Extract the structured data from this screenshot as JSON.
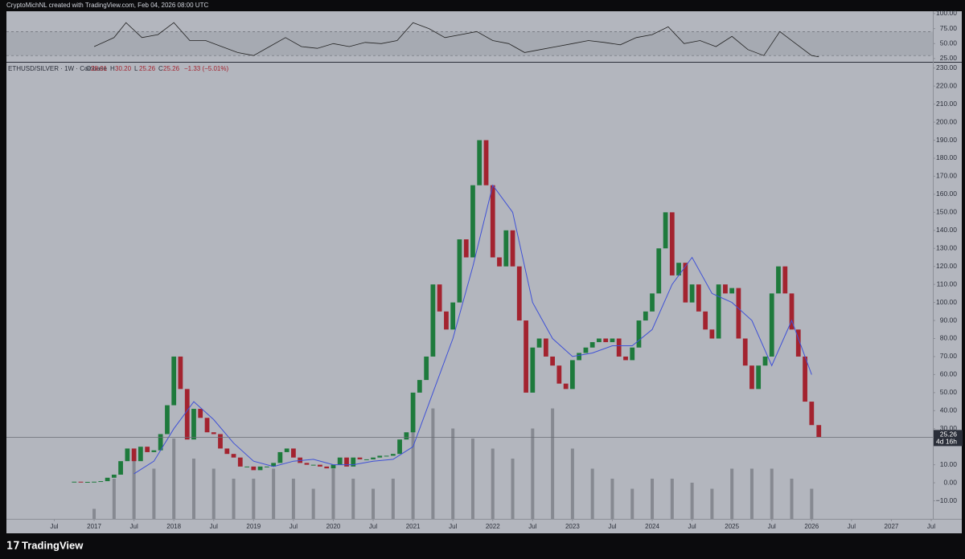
{
  "header": {
    "attribution": "CryptoMichNL created with TradingView.com, Feb 04, 2026 08:00 UTC"
  },
  "footer": {
    "logo": "TradingView"
  },
  "chart_data": [
    {
      "type": "candlestick",
      "symbol": "ETHUSD/SILVER · 1W · Coinbase",
      "legend_items": [
        {
          "key": "O",
          "text": "28.01"
        },
        {
          "key": "H",
          "text": "30.20"
        },
        {
          "key": "L",
          "text": "25.26"
        },
        {
          "key": "C",
          "text": "25.26"
        }
      ],
      "change": "−1.33 (−5.01%)",
      "up_color": "#1e7a3c",
      "down_color": "#a3232f",
      "x": [
        2016.75,
        2016.833,
        2016.917,
        2017.0,
        2017.083,
        2017.167,
        2017.25,
        2017.333,
        2017.417,
        2017.5,
        2017.583,
        2017.667,
        2017.75,
        2017.833,
        2017.917,
        2018.0,
        2018.083,
        2018.167,
        2018.25,
        2018.333,
        2018.417,
        2018.5,
        2018.583,
        2018.667,
        2018.75,
        2018.833,
        2018.917,
        2019.0,
        2019.083,
        2019.167,
        2019.25,
        2019.333,
        2019.417,
        2019.5,
        2019.583,
        2019.667,
        2019.75,
        2019.833,
        2019.917,
        2020.0,
        2020.083,
        2020.167,
        2020.25,
        2020.333,
        2020.417,
        2020.5,
        2020.583,
        2020.667,
        2020.75,
        2020.833,
        2020.917,
        2021.0,
        2021.083,
        2021.167,
        2021.25,
        2021.333,
        2021.417,
        2021.5,
        2021.583,
        2021.667,
        2021.75,
        2021.833,
        2021.917,
        2022.0,
        2022.083,
        2022.167,
        2022.25,
        2022.333,
        2022.417,
        2022.5,
        2022.583,
        2022.667,
        2022.75,
        2022.833,
        2022.917,
        2023.0,
        2023.083,
        2023.167,
        2023.25,
        2023.333,
        2023.417,
        2023.5,
        2023.583,
        2023.667,
        2023.75,
        2023.833,
        2023.917,
        2024.0,
        2024.083,
        2024.167,
        2024.25,
        2024.333,
        2024.417,
        2024.5,
        2024.583,
        2024.667,
        2024.75,
        2024.833,
        2024.917,
        2025.0,
        2025.083,
        2025.167,
        2025.25,
        2025.333,
        2025.417,
        2025.5,
        2025.583,
        2025.667,
        2025.75,
        2025.833,
        2025.917,
        2026.0,
        2026.09
      ],
      "close": [
        0.6,
        0.5,
        0.5,
        0.6,
        0.9,
        2.8,
        4.5,
        12,
        19,
        12,
        20,
        17,
        18,
        27,
        43,
        70,
        52,
        24,
        41,
        36,
        28,
        27,
        19,
        16,
        14,
        9,
        9,
        7,
        9,
        9,
        11,
        17,
        19,
        14,
        11,
        10,
        10,
        9,
        8,
        10,
        14,
        9,
        14,
        13,
        13,
        14,
        15,
        15,
        16,
        24,
        28,
        50,
        57,
        70,
        110,
        95,
        85,
        100,
        135,
        125,
        165,
        190,
        165,
        125,
        120,
        140,
        120,
        90,
        50,
        75,
        80,
        70,
        65,
        55,
        52,
        68,
        72,
        75,
        78,
        80,
        78,
        80,
        70,
        68,
        75,
        90,
        95,
        105,
        130,
        150,
        115,
        122,
        100,
        110,
        95,
        85,
        80,
        110,
        105,
        108,
        80,
        65,
        52,
        65,
        70,
        105,
        120,
        105,
        85,
        70,
        45,
        32,
        25.26
      ],
      "ma": {
        "color": "#3f51d6",
        "x": [
          2017.5,
          2017.75,
          2018.0,
          2018.25,
          2018.5,
          2018.75,
          2019.0,
          2019.25,
          2019.5,
          2019.75,
          2020.0,
          2020.25,
          2020.5,
          2020.75,
          2021.0,
          2021.25,
          2021.5,
          2021.75,
          2022.0,
          2022.25,
          2022.5,
          2022.75,
          2023.0,
          2023.25,
          2023.5,
          2023.75,
          2024.0,
          2024.25,
          2024.5,
          2024.75,
          2025.0,
          2025.25,
          2025.5,
          2025.75,
          2026.0
        ],
        "values": [
          5,
          12,
          30,
          45,
          35,
          22,
          12,
          9,
          12,
          13,
          10,
          10,
          12,
          13,
          20,
          50,
          80,
          120,
          165,
          150,
          100,
          80,
          70,
          72,
          76,
          76,
          85,
          110,
          125,
          105,
          100,
          90,
          65,
          90,
          60
        ]
      },
      "volume": {
        "color": "#7b7e86",
        "x": [
          2017.0,
          2017.25,
          2017.5,
          2017.75,
          2018.0,
          2018.25,
          2018.5,
          2018.75,
          2019.0,
          2019.25,
          2019.5,
          2019.75,
          2020.0,
          2020.25,
          2020.5,
          2020.75,
          2021.0,
          2021.25,
          2021.5,
          2021.75,
          2022.0,
          2022.25,
          2022.5,
          2022.75,
          2023.0,
          2023.25,
          2023.5,
          2023.75,
          2024.0,
          2024.25,
          2024.5,
          2024.75,
          2025.0,
          2025.25,
          2025.5,
          2025.75,
          2026.0
        ],
        "values": [
          5,
          20,
          35,
          25,
          40,
          30,
          25,
          20,
          20,
          25,
          20,
          15,
          25,
          20,
          15,
          20,
          60,
          55,
          45,
          40,
          35,
          30,
          45,
          55,
          35,
          25,
          20,
          15,
          20,
          20,
          18,
          15,
          25,
          25,
          25,
          20,
          15
        ]
      },
      "last_price": {
        "value": 25.26,
        "label": "25.26"
      },
      "countdown": "4d 16h",
      "xlim": [
        2015.9,
        2027.52
      ],
      "xticks": [
        {
          "value": 2016.5,
          "label": "Jul"
        },
        2017,
        {
          "value": 2017.5,
          "label": "Jul"
        },
        2018,
        {
          "value": 2018.5,
          "label": "Jul"
        },
        2019,
        {
          "value": 2019.5,
          "label": "Jul"
        },
        2020,
        {
          "value": 2020.5,
          "label": "Jul"
        },
        2021,
        {
          "value": 2021.5,
          "label": "Jul"
        },
        2022,
        {
          "value": 2022.5,
          "label": "Jul"
        },
        2023,
        {
          "value": 2023.5,
          "label": "Jul"
        },
        2024,
        {
          "value": 2024.5,
          "label": "Jul"
        },
        2025,
        {
          "value": 2025.5,
          "label": "Jul"
        },
        2026,
        {
          "value": 2026.5,
          "label": "Jul"
        },
        2027,
        {
          "value": 2027.5,
          "label": "Jul"
        }
      ],
      "ylim": [
        -20,
        233
      ],
      "yticks": [
        {
          "value": 230,
          "label": "230.00"
        },
        {
          "value": 220,
          "label": "220.00"
        },
        {
          "value": 210,
          "label": "210.00"
        },
        {
          "value": 200,
          "label": "200.00"
        },
        {
          "value": 190,
          "label": "190.00"
        },
        {
          "value": 180,
          "label": "180.00"
        },
        {
          "value": 170,
          "label": "170.00"
        },
        {
          "value": 160,
          "label": "160.00"
        },
        {
          "value": 150,
          "label": "150.00"
        },
        {
          "value": 140,
          "label": "140.00"
        },
        {
          "value": 130,
          "label": "130.00"
        },
        {
          "value": 120,
          "label": "120.00"
        },
        {
          "value": 110,
          "label": "110.00"
        },
        {
          "value": 100,
          "label": "100.00"
        },
        {
          "value": 90,
          "label": "90.00"
        },
        {
          "value": 80,
          "label": "80.00"
        },
        {
          "value": 70,
          "label": "70.00"
        },
        {
          "value": 60,
          "label": "60.00"
        },
        {
          "value": 50,
          "label": "50.00"
        },
        {
          "value": 40,
          "label": "40.00"
        },
        {
          "value": 30,
          "label": "30.00"
        },
        {
          "value": 10,
          "label": "10.00"
        },
        {
          "value": 0,
          "label": "0.00"
        },
        {
          "value": -10,
          "label": "−10.00"
        }
      ]
    },
    {
      "type": "line",
      "color": "#222222",
      "band": [
        30,
        70
      ],
      "x": [
        2017.0,
        2017.25,
        2017.4,
        2017.6,
        2017.8,
        2018.0,
        2018.2,
        2018.4,
        2018.6,
        2018.8,
        2019.0,
        2019.2,
        2019.4,
        2019.6,
        2019.8,
        2020.0,
        2020.2,
        2020.4,
        2020.6,
        2020.8,
        2021.0,
        2021.2,
        2021.4,
        2021.6,
        2021.8,
        2022.0,
        2022.2,
        2022.4,
        2022.6,
        2022.8,
        2023.0,
        2023.2,
        2023.4,
        2023.6,
        2023.8,
        2024.0,
        2024.2,
        2024.4,
        2024.6,
        2024.8,
        2025.0,
        2025.2,
        2025.4,
        2025.6,
        2025.8,
        2026.0,
        2026.09
      ],
      "values": [
        45,
        60,
        85,
        60,
        65,
        85,
        55,
        55,
        45,
        35,
        30,
        45,
        60,
        45,
        42,
        50,
        45,
        52,
        50,
        55,
        85,
        75,
        60,
        65,
        70,
        55,
        50,
        35,
        40,
        45,
        50,
        55,
        52,
        48,
        60,
        65,
        78,
        50,
        55,
        45,
        62,
        40,
        30,
        70,
        50,
        30,
        28
      ],
      "ylim": [
        19.5,
        104
      ],
      "yticks": [
        {
          "value": 100,
          "label": "100.00"
        },
        {
          "value": 75,
          "label": "75.00"
        },
        {
          "value": 50,
          "label": "50.00"
        },
        {
          "value": 25,
          "label": "25.00"
        }
      ]
    }
  ]
}
